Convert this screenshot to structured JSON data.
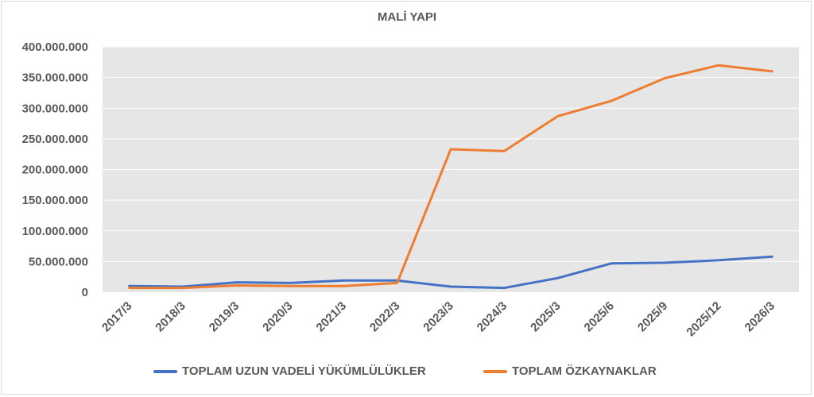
{
  "chart_data": {
    "type": "line",
    "title": "MALİ YAPI",
    "categories": [
      "2017/3",
      "2018/3",
      "2019/3",
      "2020/3",
      "2021/3",
      "2022/3",
      "2023/3",
      "2024/3",
      "2025/3",
      "2025/6",
      "2025/9",
      "2025/12",
      "2026/3"
    ],
    "series": [
      {
        "name": "TOPLAM UZUN VADELİ YÜKÜMLÜLÜKLER",
        "color": "#4472c4",
        "values": [
          10000000,
          9000000,
          16000000,
          15000000,
          19000000,
          19000000,
          9000000,
          7000000,
          23000000,
          47000000,
          48000000,
          52000000,
          58000000
        ]
      },
      {
        "name": "TOPLAM ÖZKAYNAKLAR",
        "color": "#ed7d31",
        "values": [
          7000000,
          7000000,
          11000000,
          10000000,
          10000000,
          15000000,
          233000000,
          230000000,
          287000000,
          312000000,
          349000000,
          370000000,
          360000000
        ]
      }
    ],
    "yticks": [
      "0",
      "50.000.000",
      "100.000.000",
      "150.000.000",
      "200.000.000",
      "250.000.000",
      "300.000.000",
      "350.000.000",
      "400.000.000"
    ],
    "ylim": [
      0,
      400000000
    ],
    "grid": true,
    "legend_position": "bottom",
    "plot_background": "#e7e6e6"
  }
}
